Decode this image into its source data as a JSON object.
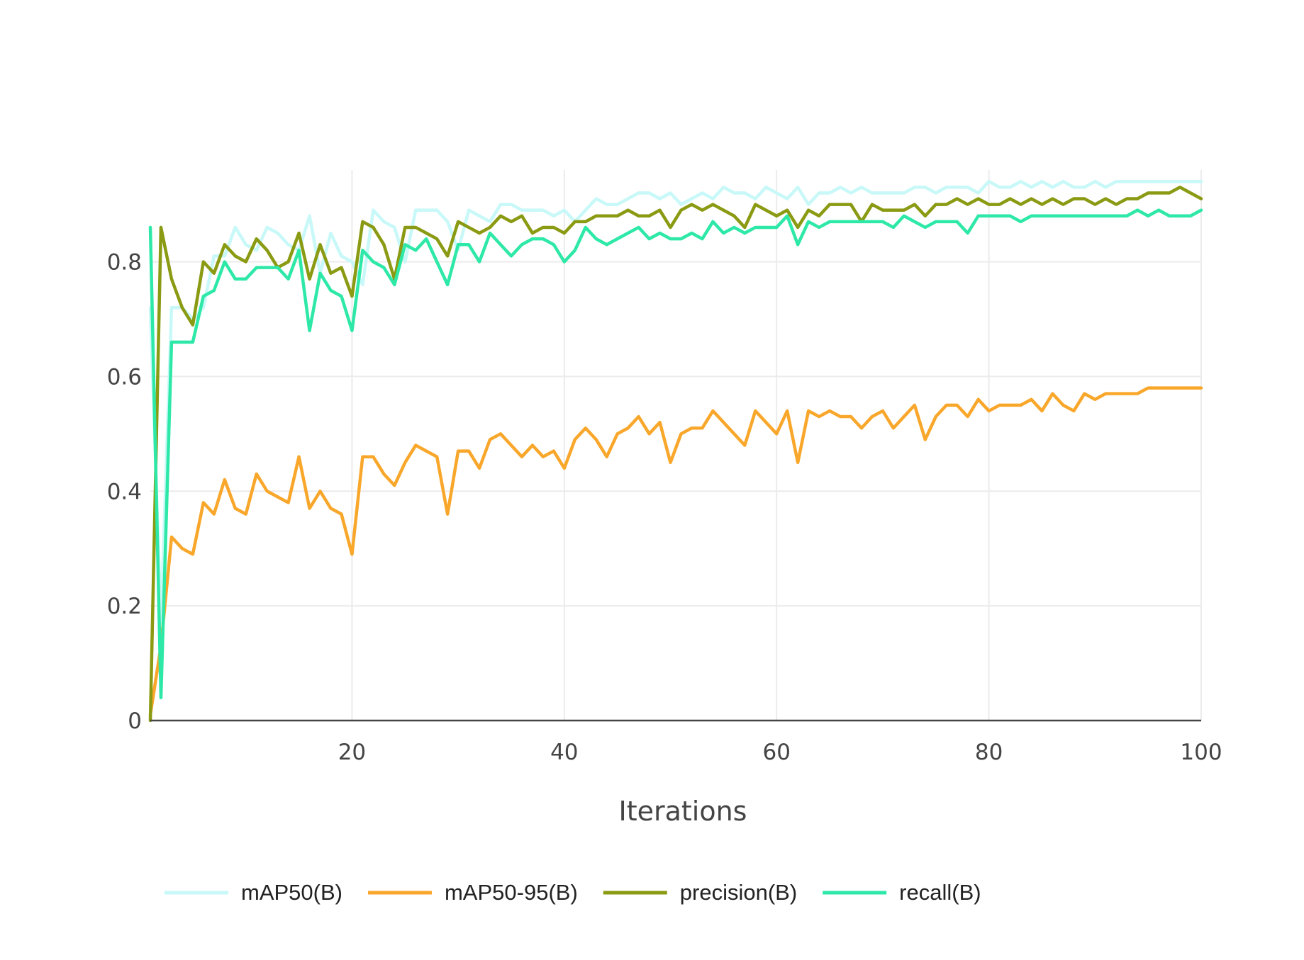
{
  "chart_data": {
    "type": "line",
    "title": "",
    "xlabel": "Iterations",
    "ylabel": "",
    "xlim": [
      1,
      100
    ],
    "ylim": [
      0,
      0.96
    ],
    "x_ticks": [
      20,
      40,
      60,
      80,
      100
    ],
    "y_ticks": [
      0,
      0.2,
      0.4,
      0.6,
      0.8
    ],
    "y_tick_labels": [
      "0",
      "0.2",
      "0.4",
      "0.6",
      "0.8"
    ],
    "x_tick_labels": [
      "20",
      "40",
      "60",
      "80",
      "100"
    ],
    "grid": true,
    "legend_position": "bottom",
    "series": [
      {
        "name": "mAP50(B)",
        "color": "#c8f8f8",
        "values": [
          0.72,
          0.17,
          0.72,
          0.72,
          0.7,
          0.72,
          0.81,
          0.81,
          0.86,
          0.83,
          0.82,
          0.86,
          0.85,
          0.83,
          0.82,
          0.88,
          0.78,
          0.85,
          0.81,
          0.8,
          0.76,
          0.89,
          0.87,
          0.86,
          0.8,
          0.89,
          0.89,
          0.89,
          0.87,
          0.82,
          0.89,
          0.88,
          0.87,
          0.9,
          0.9,
          0.89,
          0.89,
          0.89,
          0.88,
          0.89,
          0.87,
          0.89,
          0.91,
          0.9,
          0.9,
          0.91,
          0.92,
          0.92,
          0.91,
          0.92,
          0.9,
          0.91,
          0.92,
          0.91,
          0.93,
          0.92,
          0.92,
          0.91,
          0.93,
          0.92,
          0.91,
          0.93,
          0.9,
          0.92,
          0.92,
          0.93,
          0.92,
          0.93,
          0.92,
          0.92,
          0.92,
          0.92,
          0.93,
          0.93,
          0.92,
          0.93,
          0.93,
          0.93,
          0.92,
          0.94,
          0.93,
          0.93,
          0.94,
          0.93,
          0.94,
          0.93,
          0.94,
          0.93,
          0.93,
          0.94,
          0.93,
          0.94,
          0.94,
          0.94,
          0.94,
          0.94,
          0.94,
          0.94,
          0.94,
          0.94
        ]
      },
      {
        "name": "mAP50-95(B)",
        "color": "#f9a72b",
        "values": [
          0.01,
          0.13,
          0.32,
          0.3,
          0.29,
          0.38,
          0.36,
          0.42,
          0.37,
          0.36,
          0.43,
          0.4,
          0.39,
          0.38,
          0.46,
          0.37,
          0.4,
          0.37,
          0.36,
          0.29,
          0.46,
          0.46,
          0.43,
          0.41,
          0.45,
          0.48,
          0.47,
          0.46,
          0.36,
          0.47,
          0.47,
          0.44,
          0.49,
          0.5,
          0.48,
          0.46,
          0.48,
          0.46,
          0.47,
          0.44,
          0.49,
          0.51,
          0.49,
          0.46,
          0.5,
          0.51,
          0.53,
          0.5,
          0.52,
          0.45,
          0.5,
          0.51,
          0.51,
          0.54,
          0.52,
          0.5,
          0.48,
          0.54,
          0.52,
          0.5,
          0.54,
          0.45,
          0.54,
          0.53,
          0.54,
          0.53,
          0.53,
          0.51,
          0.53,
          0.54,
          0.51,
          0.53,
          0.55,
          0.49,
          0.53,
          0.55,
          0.55,
          0.53,
          0.56,
          0.54,
          0.55,
          0.55,
          0.55,
          0.56,
          0.54,
          0.57,
          0.55,
          0.54,
          0.57,
          0.56,
          0.57,
          0.57,
          0.57,
          0.57,
          0.58,
          0.58,
          0.58,
          0.58,
          0.58,
          0.58
        ]
      },
      {
        "name": "precision(B)",
        "color": "#8a9a12",
        "values": [
          0.0,
          0.86,
          0.77,
          0.72,
          0.69,
          0.8,
          0.78,
          0.83,
          0.81,
          0.8,
          0.84,
          0.82,
          0.79,
          0.8,
          0.85,
          0.77,
          0.83,
          0.78,
          0.79,
          0.74,
          0.87,
          0.86,
          0.83,
          0.77,
          0.86,
          0.86,
          0.85,
          0.84,
          0.81,
          0.87,
          0.86,
          0.85,
          0.86,
          0.88,
          0.87,
          0.88,
          0.85,
          0.86,
          0.86,
          0.85,
          0.87,
          0.87,
          0.88,
          0.88,
          0.88,
          0.89,
          0.88,
          0.88,
          0.89,
          0.86,
          0.89,
          0.9,
          0.89,
          0.9,
          0.89,
          0.88,
          0.86,
          0.9,
          0.89,
          0.88,
          0.89,
          0.86,
          0.89,
          0.88,
          0.9,
          0.9,
          0.9,
          0.87,
          0.9,
          0.89,
          0.89,
          0.89,
          0.9,
          0.88,
          0.9,
          0.9,
          0.91,
          0.9,
          0.91,
          0.9,
          0.9,
          0.91,
          0.9,
          0.91,
          0.9,
          0.91,
          0.9,
          0.91,
          0.91,
          0.9,
          0.91,
          0.9,
          0.91,
          0.91,
          0.92,
          0.92,
          0.92,
          0.93,
          0.92,
          0.91
        ]
      },
      {
        "name": "recall(B)",
        "color": "#2ee8a8",
        "values": [
          0.86,
          0.04,
          0.66,
          0.66,
          0.66,
          0.74,
          0.75,
          0.8,
          0.77,
          0.77,
          0.79,
          0.79,
          0.79,
          0.77,
          0.82,
          0.68,
          0.78,
          0.75,
          0.74,
          0.68,
          0.82,
          0.8,
          0.79,
          0.76,
          0.83,
          0.82,
          0.84,
          0.8,
          0.76,
          0.83,
          0.83,
          0.8,
          0.85,
          0.83,
          0.81,
          0.83,
          0.84,
          0.84,
          0.83,
          0.8,
          0.82,
          0.86,
          0.84,
          0.83,
          0.84,
          0.85,
          0.86,
          0.84,
          0.85,
          0.84,
          0.84,
          0.85,
          0.84,
          0.87,
          0.85,
          0.86,
          0.85,
          0.86,
          0.86,
          0.86,
          0.88,
          0.83,
          0.87,
          0.86,
          0.87,
          0.87,
          0.87,
          0.87,
          0.87,
          0.87,
          0.86,
          0.88,
          0.87,
          0.86,
          0.87,
          0.87,
          0.87,
          0.85,
          0.88,
          0.88,
          0.88,
          0.88,
          0.87,
          0.88,
          0.88,
          0.88,
          0.88,
          0.88,
          0.88,
          0.88,
          0.88,
          0.88,
          0.88,
          0.89,
          0.88,
          0.89,
          0.88,
          0.88,
          0.88,
          0.89
        ]
      }
    ]
  }
}
